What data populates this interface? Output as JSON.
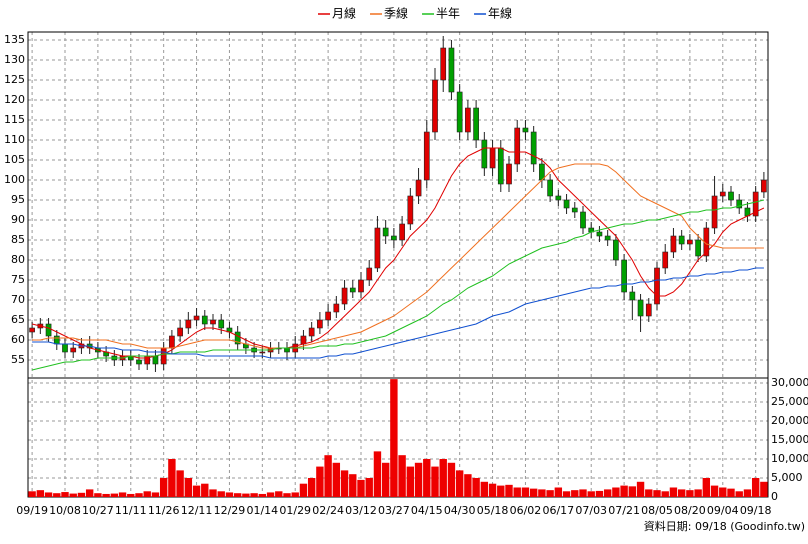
{
  "chart_data": {
    "type": "candlestick",
    "categories": [
      "09/19",
      null,
      null,
      null,
      "10/08",
      null,
      null,
      null,
      "10/27",
      null,
      null,
      null,
      "11/11",
      null,
      null,
      null,
      "11/26",
      null,
      null,
      null,
      "12/11",
      null,
      null,
      null,
      "12/29",
      null,
      null,
      null,
      "01/14",
      null,
      null,
      null,
      "01/29",
      null,
      null,
      null,
      "02/24",
      null,
      null,
      null,
      "03/12",
      null,
      null,
      null,
      "03/27",
      null,
      null,
      null,
      "04/15",
      null,
      null,
      null,
      "04/30",
      null,
      null,
      null,
      "05/18",
      null,
      null,
      null,
      "06/02",
      null,
      null,
      null,
      "06/17",
      null,
      null,
      null,
      "07/03",
      null,
      null,
      null,
      "07/21",
      null,
      null,
      null,
      "08/05",
      null,
      null,
      null,
      "08/20",
      null,
      null,
      null,
      "09/04",
      null,
      null,
      null,
      "09/18",
      null
    ],
    "open": [
      62,
      63,
      64,
      61,
      59,
      57,
      58,
      59,
      58,
      57,
      56,
      55,
      56,
      55,
      54,
      56,
      54,
      58,
      61,
      63,
      65,
      66,
      64,
      65,
      63,
      62,
      59,
      58,
      57,
      57,
      58,
      58,
      57,
      59,
      61,
      63,
      65,
      67,
      69,
      73,
      72,
      75,
      78,
      88,
      86,
      85,
      89,
      96,
      100,
      112,
      125,
      133,
      122,
      112,
      118,
      110,
      103,
      108,
      99,
      104,
      113,
      112,
      104,
      100,
      96,
      95,
      93,
      92,
      88,
      87,
      86,
      85,
      80,
      72,
      70,
      66,
      69,
      78,
      82,
      86,
      84,
      85,
      81,
      88,
      96,
      97,
      95,
      93,
      91,
      97
    ],
    "high": [
      64.5,
      65.5,
      65.5,
      62.5,
      60.5,
      59.5,
      60.5,
      61,
      59.5,
      58.5,
      57.5,
      57.5,
      57.5,
      56.5,
      57.5,
      57.5,
      59.5,
      62.5,
      65,
      67,
      68,
      67.5,
      66.5,
      66.5,
      64.5,
      63.5,
      60.5,
      59.5,
      58.5,
      59.5,
      59.5,
      59.5,
      61,
      62.5,
      64.5,
      67,
      69,
      71,
      75,
      75,
      77,
      80,
      91,
      90,
      88,
      91,
      98,
      103,
      115,
      128,
      136,
      135,
      124,
      120,
      120,
      112,
      110,
      110,
      106,
      115,
      115,
      113.5,
      105.5,
      101.5,
      97.5,
      96.5,
      94.5,
      93.5,
      89.5,
      88.5,
      87.5,
      86.5,
      81.5,
      73.5,
      71.5,
      70.5,
      79.5,
      84,
      88,
      87.5,
      86.5,
      86.5,
      89.5,
      101,
      99,
      98.5,
      96.5,
      94.5,
      98.5,
      102
    ],
    "low": [
      60.5,
      61.5,
      59.5,
      57.5,
      55.5,
      55.5,
      56.5,
      56.5,
      55.5,
      54.5,
      53.5,
      53.5,
      53.5,
      52.5,
      52.5,
      52,
      52.5,
      56.5,
      59.5,
      61.5,
      63.5,
      62.5,
      62.5,
      61.5,
      60.5,
      57.5,
      56.5,
      55.5,
      55.5,
      55.5,
      56.5,
      55,
      55.5,
      57.5,
      59.5,
      61.5,
      63.5,
      65.5,
      67.5,
      70.5,
      70.5,
      73.5,
      77,
      84,
      83,
      83.5,
      87.5,
      94,
      98,
      110,
      122,
      120,
      110,
      110,
      108,
      101,
      101,
      97,
      97,
      102,
      110,
      102,
      98,
      94.5,
      93.5,
      91.5,
      90.5,
      86.5,
      85.5,
      84.5,
      83.5,
      78.5,
      70,
      65,
      62,
      64.5,
      67.5,
      76.5,
      80.5,
      82.5,
      82.5,
      79.5,
      79.5,
      86.5,
      94.5,
      93.5,
      91.5,
      89.5,
      89.5,
      95.5
    ],
    "close": [
      63,
      64,
      61,
      59,
      57,
      58,
      59,
      58,
      57,
      56,
      55,
      56,
      55,
      54,
      56,
      54,
      58,
      61,
      63,
      65,
      66,
      64,
      65,
      63,
      62,
      59,
      58,
      57,
      57,
      58,
      58,
      57,
      59,
      61,
      63,
      65,
      67,
      69,
      73,
      72,
      75,
      78,
      88,
      86,
      85,
      89,
      96,
      100,
      112,
      125,
      133,
      122,
      112,
      118,
      110,
      103,
      108,
      99,
      104,
      113,
      112,
      104,
      100,
      96,
      95,
      93,
      92,
      88,
      87,
      86,
      85,
      80,
      72,
      70,
      66,
      69,
      78,
      82,
      86,
      84,
      85,
      81,
      88,
      96,
      97,
      95,
      93,
      91,
      97,
      100
    ],
    "up_color": "#e00000",
    "down_color": "#00a000",
    "series": [
      {
        "name": "月線",
        "color": "#e00000",
        "values": [
          64,
          63.5,
          63,
          62,
          61,
          60,
          59,
          58,
          57.5,
          57,
          56.5,
          56,
          56,
          55.5,
          55.5,
          56,
          56.5,
          57.5,
          59,
          60.5,
          62,
          63,
          63,
          62.5,
          62,
          61,
          60,
          59,
          58.5,
          58,
          58,
          58,
          58.5,
          59,
          59.5,
          60.5,
          62,
          64,
          66,
          68,
          70,
          72,
          75,
          78,
          80,
          83,
          86,
          88,
          90,
          93,
          97,
          101,
          104,
          106,
          107,
          108,
          108,
          108,
          107,
          107,
          107,
          106,
          105,
          103,
          100,
          98,
          96,
          94,
          92,
          90,
          88,
          86,
          83,
          80,
          76,
          73,
          71,
          71,
          72,
          74,
          77,
          80,
          82,
          84,
          87,
          89,
          90,
          91,
          92,
          93
        ]
      },
      {
        "name": "季線",
        "color": "#f07020",
        "values": [
          60,
          60,
          60.5,
          60.5,
          60.5,
          60.5,
          60,
          60,
          60,
          60,
          59.5,
          59,
          59,
          58.5,
          58,
          58,
          58,
          58,
          58.5,
          59,
          59.5,
          60,
          60,
          60,
          60,
          59.5,
          59,
          58.5,
          58,
          58,
          58,
          58,
          58,
          58.5,
          59,
          59.5,
          60,
          60.5,
          61,
          61.5,
          62,
          63,
          64,
          65,
          66,
          67.5,
          69,
          70.5,
          72,
          74,
          76,
          78,
          80,
          82,
          84,
          86,
          88,
          90,
          92,
          94,
          96,
          98,
          100,
          102,
          103,
          103.5,
          104,
          104,
          104,
          104,
          103.5,
          102,
          100,
          98,
          96,
          95,
          94,
          93,
          92,
          91,
          88,
          86,
          84,
          83.5,
          83,
          83,
          83,
          83,
          83,
          83
        ]
      },
      {
        "name": "半年",
        "color": "#20c020",
        "values": [
          52.5,
          53,
          53.5,
          54,
          54.5,
          54.5,
          55,
          55,
          55.5,
          55.5,
          55.5,
          55.5,
          56,
          56,
          56,
          56,
          56.5,
          56.5,
          57,
          57,
          57,
          57,
          57.5,
          57.5,
          57.5,
          57.5,
          57.5,
          57.5,
          57.5,
          57.5,
          58,
          58,
          58,
          58,
          58,
          58.5,
          58.5,
          58.5,
          59,
          59,
          59.5,
          60,
          60.5,
          61,
          62,
          63,
          64,
          65,
          66,
          67.5,
          69,
          70,
          71.5,
          73,
          74,
          75,
          76,
          77.5,
          79,
          80,
          81,
          82,
          83,
          83.5,
          84,
          84.5,
          85.5,
          86,
          87,
          87.5,
          88,
          88.5,
          89,
          89,
          89.5,
          90,
          90,
          90.5,
          91,
          91.5,
          92,
          92,
          92.5,
          92.5,
          93,
          93,
          93.5,
          94,
          94.5,
          95
        ]
      },
      {
        "name": "年線",
        "color": "#1050d0",
        "values": [
          59.5,
          59.5,
          59.5,
          59,
          59,
          59,
          58.5,
          58.5,
          58,
          58,
          58,
          57.5,
          57.5,
          57.5,
          57,
          57,
          57,
          56.5,
          56.5,
          56.5,
          56.5,
          56,
          56,
          56,
          56,
          56,
          56,
          56,
          56,
          55.5,
          55.5,
          55.5,
          55.5,
          55.5,
          55.5,
          55.5,
          56,
          56,
          56.5,
          56.5,
          57,
          57.5,
          58,
          58.5,
          59,
          59.5,
          60,
          60.5,
          61,
          61.5,
          62,
          62.5,
          63,
          63.5,
          64,
          65,
          66,
          66.5,
          67,
          68,
          69,
          69.5,
          70,
          70.5,
          71,
          71.5,
          72,
          72.5,
          73,
          73,
          73.5,
          73.5,
          74,
          74,
          74.5,
          74.5,
          75,
          75,
          75.5,
          75.5,
          76,
          76,
          76.5,
          76.5,
          77,
          77,
          77.5,
          77.5,
          78,
          78
        ]
      }
    ],
    "ylim": [
      50.5,
      137
    ],
    "yticks": [
      55,
      60,
      65,
      70,
      75,
      80,
      85,
      90,
      95,
      100,
      105,
      110,
      115,
      120,
      125,
      130,
      135
    ],
    "grid": true,
    "volume": {
      "color": "#ee0000",
      "ylim": [
        0,
        31300
      ],
      "yticks": [
        0,
        {
          "value": 5000,
          "label": "5,000"
        },
        {
          "value": 10000,
          "label": "10,000"
        },
        {
          "value": 15000,
          "label": "15,000"
        },
        {
          "value": 20000,
          "label": "20,000"
        },
        {
          "value": 25000,
          "label": "25,000"
        },
        {
          "value": 30000,
          "label": "30,000"
        }
      ],
      "values": [
        1500,
        1800,
        1200,
        1000,
        1300,
        900,
        1100,
        2000,
        1000,
        800,
        900,
        1200,
        800,
        1000,
        1500,
        1200,
        5000,
        10000,
        7000,
        5000,
        3000,
        3500,
        2000,
        1500,
        1200,
        1000,
        900,
        1000,
        800,
        1200,
        1500,
        1000,
        1200,
        3500,
        5000,
        8000,
        11000,
        9000,
        7000,
        6000,
        4500,
        5000,
        12000,
        9000,
        31000,
        11000,
        8000,
        9000,
        10000,
        8000,
        10000,
        9000,
        7000,
        6000,
        5000,
        4000,
        3500,
        3000,
        3200,
        2500,
        2500,
        2200,
        2000,
        1800,
        2500,
        1500,
        1800,
        2000,
        1500,
        1600,
        2000,
        2500,
        3000,
        2800,
        4000,
        2000,
        1800,
        1500,
        2500,
        2000,
        1800,
        2000,
        5000,
        3000,
        2500,
        2200,
        1500,
        2000,
        5000,
        4000
      ]
    },
    "source": "資料日期: 09/18 (Goodinfo.tw)"
  }
}
